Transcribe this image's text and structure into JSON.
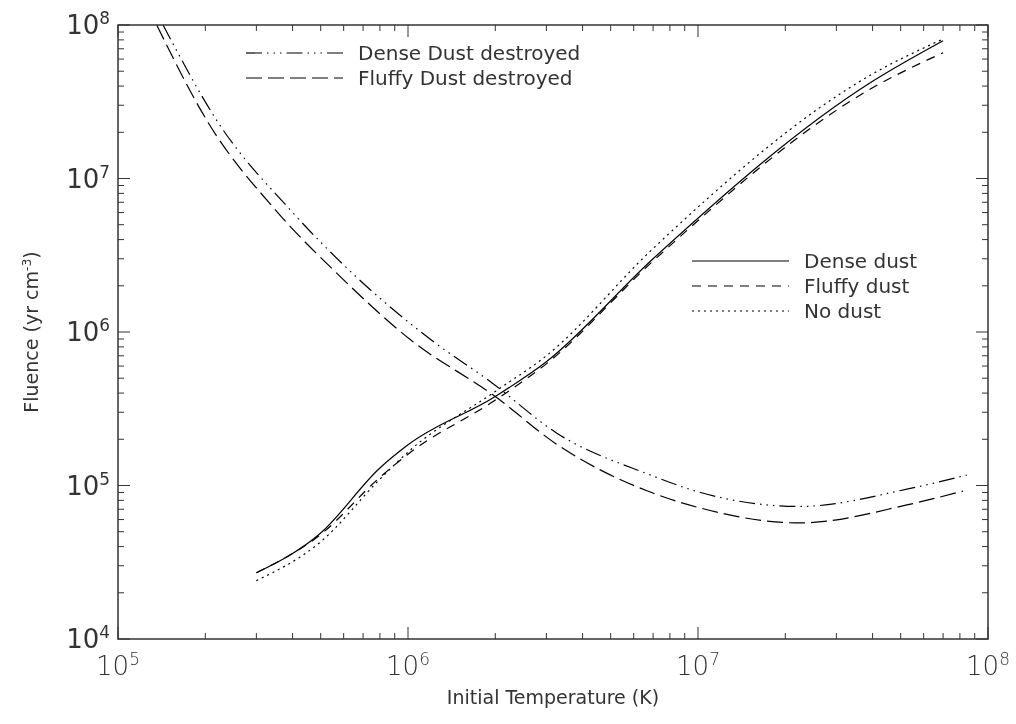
{
  "chart_data": {
    "type": "line",
    "xlabel": "Initial Temperature (K)",
    "ylabel": "Fluence (yr cm$^{-3}$)",
    "log": "xy",
    "legend": "top left",
    "xlim": [
      100000,
      100000000
    ],
    "ylim": [
      10000,
      100000000
    ],
    "xticks": [
      {
        "value": 100000,
        "label": "10$^{5}$"
      },
      {
        "value": 200000,
        "label": null
      },
      {
        "value": 300000,
        "label": null
      },
      {
        "value": 400000,
        "label": null
      },
      {
        "value": 500000,
        "label": null
      },
      {
        "value": 600000,
        "label": null
      },
      {
        "value": 700000,
        "label": null
      },
      {
        "value": 800000,
        "label": null
      },
      {
        "value": 900000,
        "label": null
      },
      {
        "value": 1000000,
        "label": "10$^{6}$"
      },
      {
        "value": 2000000,
        "label": null
      },
      {
        "value": 3000000,
        "label": null
      },
      {
        "value": 4000000,
        "label": null
      },
      {
        "value": 5000000,
        "label": null
      },
      {
        "value": 6000000,
        "label": null
      },
      {
        "value": 7000000,
        "label": null
      },
      {
        "value": 8000000,
        "label": null
      },
      {
        "value": 9000000,
        "label": null
      },
      {
        "value": 10000000,
        "label": "10$^{7}$"
      },
      {
        "value": 20000000,
        "label": null
      },
      {
        "value": 30000000,
        "label": null
      },
      {
        "value": 40000000,
        "label": null
      },
      {
        "value": 50000000,
        "label": null
      },
      {
        "value": 60000000,
        "label": null
      },
      {
        "value": 70000000,
        "label": null
      },
      {
        "value": 80000000,
        "label": null
      },
      {
        "value": 90000000,
        "label": null
      },
      {
        "value": 100000000,
        "label": "10$^{8}$"
      }
    ],
    "yticks": [
      {
        "value": 10000,
        "label": "10$^{4}$"
      },
      {
        "value": 20000,
        "label": null
      },
      {
        "value": 30000,
        "label": null
      },
      {
        "value": 40000,
        "label": null
      },
      {
        "value": 50000,
        "label": null
      },
      {
        "value": 60000,
        "label": null
      },
      {
        "value": 70000,
        "label": null
      },
      {
        "value": 80000,
        "label": null
      },
      {
        "value": 90000,
        "label": null
      },
      {
        "value": 100000,
        "label": "10$^{5}$"
      },
      {
        "value": 200000,
        "label": null
      },
      {
        "value": 300000,
        "label": null
      },
      {
        "value": 400000,
        "label": null
      },
      {
        "value": 500000,
        "label": null
      },
      {
        "value": 600000,
        "label": null
      },
      {
        "value": 700000,
        "label": null
      },
      {
        "value": 800000,
        "label": null
      },
      {
        "value": 900000,
        "label": null
      },
      {
        "value": 1000000,
        "label": "10$^{6}$"
      },
      {
        "value": 2000000,
        "label": null
      },
      {
        "value": 3000000,
        "label": null
      },
      {
        "value": 4000000,
        "label": null
      },
      {
        "value": 5000000,
        "label": null
      },
      {
        "value": 6000000,
        "label": null
      },
      {
        "value": 7000000,
        "label": null
      },
      {
        "value": 8000000,
        "label": null
      },
      {
        "value": 9000000,
        "label": null
      },
      {
        "value": 10000000,
        "label": "10$^{7}$"
      },
      {
        "value": 20000000,
        "label": null
      },
      {
        "value": 30000000,
        "label": null
      },
      {
        "value": 40000000,
        "label": null
      },
      {
        "value": 50000000,
        "label": null
      },
      {
        "value": 60000000,
        "label": null
      },
      {
        "value": 70000000,
        "label": null
      },
      {
        "value": 80000000,
        "label": null
      },
      {
        "value": 90000000,
        "label": null
      },
      {
        "value": 100000000,
        "label": "10$^{8}$"
      }
    ],
    "series": [
      {
        "name": "Dense Dust destroyed",
        "color": "#000000",
        "line_style": "dashdot",
        "x": [
          143000,
          222000,
          394000,
          645000,
          1200000,
          1950000,
          3250000,
          6700000,
          10000000,
          22400000,
          53000000,
          84500000
        ],
        "values": [
          100000000,
          23000000,
          6200000,
          2400000,
          890000,
          466000,
          220000,
          119000,
          91000,
          73000,
          95000,
          117000
        ]
      },
      {
        "name": "Fluffy Dust destroyed",
        "color": "#000000",
        "line_style": "longdash",
        "x": [
          136000,
          205000,
          350000,
          570000,
          1020000,
          2000000,
          3250000,
          6700000,
          10000000,
          22400000,
          53000000,
          82000000
        ],
        "values": [
          100000000,
          23000000,
          6200000,
          2400000,
          890000,
          380000,
          186000,
          92000,
          72000,
          57000,
          75000,
          92000
        ]
      },
      {
        "name": "Dense dust",
        "color": "#000000",
        "line_style": "solid",
        "x": [
          300000,
          500000,
          800000,
          1000000,
          2000000,
          3000000,
          7000000,
          40000000,
          70000000
        ],
        "values": [
          27000,
          49000,
          130000,
          184000,
          380000,
          640000,
          3000000,
          43000000,
          79000000
        ]
      },
      {
        "name": "Fluffy dust",
        "color": "#000000",
        "line_style": "dashed",
        "x": [
          300000,
          500000,
          800000,
          1000000,
          2000000,
          3000000,
          7000000,
          40000000,
          70000000
        ],
        "values": [
          27000,
          48000,
          113000,
          160000,
          360000,
          620000,
          2900000,
          39000000,
          66000000
        ]
      },
      {
        "name": "No dust",
        "color": "#000000",
        "line_style": "dotted",
        "x": [
          300000,
          500000,
          800000,
          1000000,
          2000000,
          3000000,
          7000000,
          40000000,
          70000000
        ],
        "values": [
          24000,
          43000,
          110000,
          165000,
          410000,
          700000,
          3500000,
          48000000,
          81000000
        ]
      }
    ]
  }
}
